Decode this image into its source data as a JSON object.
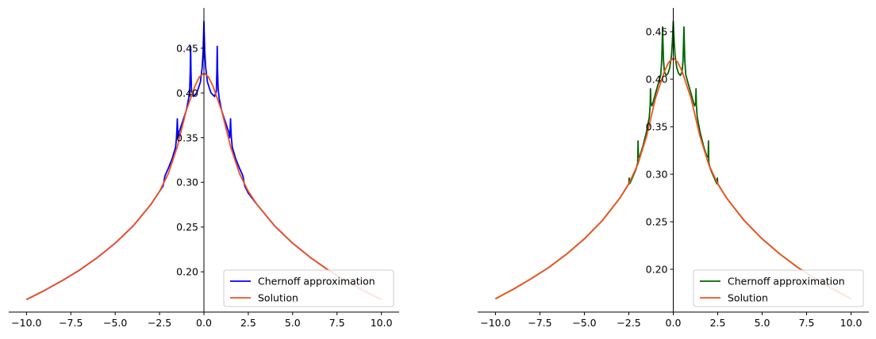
{
  "chart_data": [
    {
      "type": "line",
      "xlim": [
        -11,
        11
      ],
      "ylim": [
        0.155,
        0.495
      ],
      "x_ticks": [
        -10.0,
        -7.5,
        -5.0,
        -2.5,
        0.0,
        2.5,
        5.0,
        7.5,
        10.0
      ],
      "x_tick_labels": [
        "−10.0",
        "−7.5",
        "−5.0",
        "−2.5",
        "0.0",
        "2.5",
        "5.0",
        "7.5",
        "10.0"
      ],
      "y_ticks": [
        0.2,
        0.25,
        0.3,
        0.35,
        0.4,
        0.45
      ],
      "y_tick_labels": [
        "0.20",
        "0.25",
        "0.30",
        "0.35",
        "0.40",
        "0.45"
      ],
      "grid": false,
      "spines": "center",
      "legend_position": "lower-right",
      "series": [
        {
          "name": "Chernoff approximation",
          "color": "#0000ff",
          "x": [
            -10,
            -9,
            -8,
            -7,
            -6,
            -5,
            -4,
            -3,
            -2.3,
            -2.25,
            -2.2,
            -2.0,
            -1.8,
            -1.6,
            -1.55,
            -1.52,
            -1.5,
            -1.48,
            -1.45,
            -1.4,
            -1.2,
            -1.0,
            -0.85,
            -0.8,
            -0.77,
            -0.75,
            -0.73,
            -0.7,
            -0.6,
            -0.4,
            -0.2,
            -0.1,
            -0.05,
            -0.02,
            0,
            0.02,
            0.05,
            0.1,
            0.2,
            0.4,
            0.6,
            0.7,
            0.73,
            0.75,
            0.77,
            0.8,
            0.85,
            1.0,
            1.2,
            1.4,
            1.45,
            1.48,
            1.5,
            1.52,
            1.55,
            1.6,
            1.8,
            2.0,
            2.2,
            2.25,
            2.3,
            2.5,
            3,
            4,
            5,
            6,
            7,
            8,
            9,
            10
          ],
          "y": [
            0.169,
            0.179,
            0.19,
            0.202,
            0.216,
            0.232,
            0.251,
            0.275,
            0.296,
            0.301,
            0.307,
            0.316,
            0.326,
            0.339,
            0.349,
            0.36,
            0.371,
            0.36,
            0.35,
            0.356,
            0.368,
            0.38,
            0.395,
            0.405,
            0.425,
            0.452,
            0.425,
            0.402,
            0.396,
            0.4,
            0.412,
            0.428,
            0.445,
            0.465,
            0.48,
            0.465,
            0.445,
            0.428,
            0.412,
            0.4,
            0.396,
            0.402,
            0.425,
            0.452,
            0.425,
            0.405,
            0.395,
            0.38,
            0.368,
            0.356,
            0.35,
            0.36,
            0.371,
            0.36,
            0.349,
            0.339,
            0.326,
            0.316,
            0.307,
            0.301,
            0.296,
            0.288,
            0.275,
            0.251,
            0.232,
            0.216,
            0.202,
            0.19,
            0.179,
            0.169
          ]
        },
        {
          "name": "Solution",
          "color": "#f4511e",
          "x": [
            -10,
            -9,
            -8,
            -7,
            -6,
            -5,
            -4,
            -3,
            -2.5,
            -2,
            -1.5,
            -1,
            -0.5,
            -0.25,
            0,
            0.25,
            0.5,
            1,
            1.5,
            2,
            2.5,
            3,
            4,
            5,
            6,
            7,
            8,
            9,
            10
          ],
          "y": [
            0.169,
            0.179,
            0.19,
            0.202,
            0.216,
            0.232,
            0.251,
            0.275,
            0.29,
            0.31,
            0.34,
            0.38,
            0.408,
            0.418,
            0.422,
            0.418,
            0.408,
            0.38,
            0.34,
            0.31,
            0.29,
            0.275,
            0.251,
            0.232,
            0.216,
            0.202,
            0.19,
            0.179,
            0.169
          ]
        }
      ]
    },
    {
      "type": "line",
      "xlim": [
        -11,
        11
      ],
      "ylim": [
        0.155,
        0.475
      ],
      "x_ticks": [
        -10.0,
        -7.5,
        -5.0,
        -2.5,
        0.0,
        2.5,
        5.0,
        7.5,
        10.0
      ],
      "x_tick_labels": [
        "−10.0",
        "−7.5",
        "−5.0",
        "−2.5",
        "0.0",
        "2.5",
        "5.0",
        "7.5",
        "10.0"
      ],
      "y_ticks": [
        0.2,
        0.25,
        0.3,
        0.35,
        0.4,
        0.45
      ],
      "y_tick_labels": [
        "0.20",
        "0.25",
        "0.30",
        "0.35",
        "0.40",
        "0.45"
      ],
      "grid": false,
      "spines": "center",
      "legend_position": "lower-right",
      "series": [
        {
          "name": "Chernoff approximation",
          "color": "#006400",
          "x": [
            -10,
            -9,
            -8,
            -7,
            -6,
            -5,
            -4,
            -3,
            -2.5,
            -2.48,
            -2.46,
            -2.4,
            -2.1,
            -2.0,
            -1.98,
            -1.96,
            -1.9,
            -1.7,
            -1.5,
            -1.35,
            -1.3,
            -1.28,
            -1.26,
            -1.2,
            -1.1,
            -1.0,
            -0.8,
            -0.7,
            -0.65,
            -0.62,
            -0.6,
            -0.58,
            -0.55,
            -0.5,
            -0.4,
            -0.3,
            -0.2,
            -0.1,
            -0.05,
            -0.02,
            0,
            0.02,
            0.05,
            0.1,
            0.2,
            0.3,
            0.4,
            0.5,
            0.55,
            0.58,
            0.6,
            0.62,
            0.65,
            0.7,
            0.8,
            1.0,
            1.1,
            1.2,
            1.26,
            1.28,
            1.3,
            1.35,
            1.5,
            1.7,
            1.9,
            1.96,
            1.98,
            2.0,
            2.1,
            2.4,
            2.46,
            2.48,
            2.5,
            3,
            4,
            5,
            6,
            7,
            8,
            9,
            10
          ],
          "y": [
            0.169,
            0.179,
            0.19,
            0.202,
            0.216,
            0.232,
            0.251,
            0.275,
            0.29,
            0.296,
            0.29,
            0.292,
            0.305,
            0.312,
            0.335,
            0.318,
            0.318,
            0.33,
            0.345,
            0.36,
            0.372,
            0.39,
            0.375,
            0.372,
            0.378,
            0.385,
            0.398,
            0.405,
            0.42,
            0.44,
            0.455,
            0.44,
            0.42,
            0.408,
            0.404,
            0.406,
            0.412,
            0.425,
            0.44,
            0.452,
            0.461,
            0.452,
            0.44,
            0.425,
            0.412,
            0.406,
            0.404,
            0.408,
            0.42,
            0.44,
            0.455,
            0.44,
            0.42,
            0.405,
            0.398,
            0.385,
            0.378,
            0.372,
            0.375,
            0.39,
            0.372,
            0.36,
            0.345,
            0.33,
            0.318,
            0.318,
            0.335,
            0.312,
            0.305,
            0.292,
            0.29,
            0.296,
            0.29,
            0.275,
            0.251,
            0.232,
            0.216,
            0.202,
            0.19,
            0.179,
            0.169
          ]
        },
        {
          "name": "Solution",
          "color": "#f4511e",
          "x": [
            -10,
            -9,
            -8,
            -7,
            -6,
            -5,
            -4,
            -3,
            -2.5,
            -2,
            -1.5,
            -1,
            -0.5,
            -0.25,
            0,
            0.25,
            0.5,
            1,
            1.5,
            2,
            2.5,
            3,
            4,
            5,
            6,
            7,
            8,
            9,
            10
          ],
          "y": [
            0.169,
            0.179,
            0.19,
            0.202,
            0.216,
            0.232,
            0.251,
            0.275,
            0.29,
            0.31,
            0.34,
            0.38,
            0.408,
            0.418,
            0.422,
            0.418,
            0.408,
            0.38,
            0.34,
            0.31,
            0.29,
            0.275,
            0.251,
            0.232,
            0.216,
            0.202,
            0.19,
            0.179,
            0.169
          ]
        }
      ]
    }
  ]
}
